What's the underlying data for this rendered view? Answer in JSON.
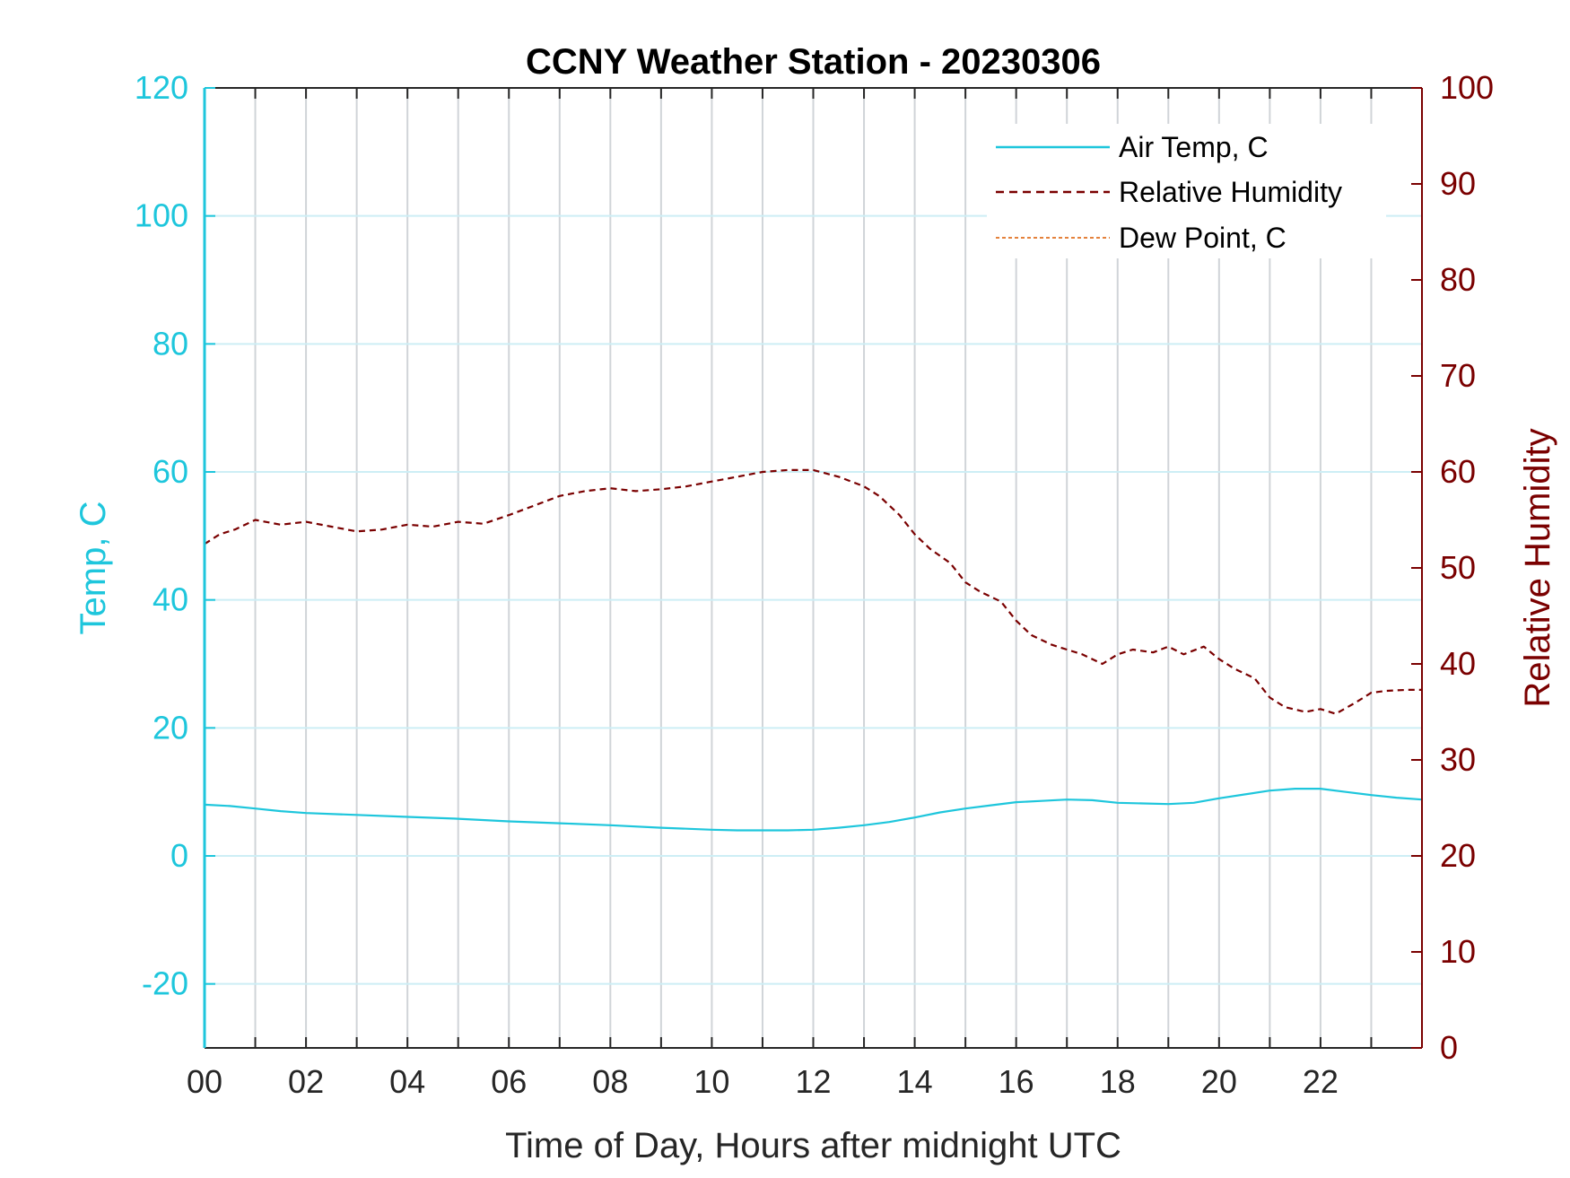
{
  "chart_data": {
    "type": "line",
    "title": "CCNY Weather Station - 20230306",
    "xlabel": "Time of Day, Hours after midnight UTC",
    "ylabel_left": "Temp, C",
    "ylabel_right": "Relative Humidity",
    "xlim": [
      0,
      24
    ],
    "ylim_left": [
      -30,
      120
    ],
    "ylim_right": [
      0,
      100
    ],
    "x_tick_labels": [
      "00",
      "02",
      "04",
      "06",
      "08",
      "10",
      "12",
      "14",
      "16",
      "18",
      "20",
      "22"
    ],
    "left_tick_labels": [
      "120",
      "100",
      "80",
      "60",
      "40",
      "20",
      "0",
      "-20"
    ],
    "right_tick_labels": [
      "100",
      "90",
      "80",
      "70",
      "60",
      "50",
      "40",
      "30",
      "20",
      "10",
      "0"
    ],
    "grid": true,
    "legend_location": "top-right",
    "colors": {
      "air_temp": "#1ec6dc",
      "humidity": "#7a0000",
      "dew_point": "#e07020",
      "right_axis": "#7a0000",
      "left_axis": "#1ec6dc",
      "grid_vertical": "#d0d4d8",
      "grid_horizontal": "#cdeef5"
    },
    "series": [
      {
        "name": "Air Temp, C",
        "axis": "left",
        "style": "solid",
        "x": [
          0,
          0.5,
          1,
          1.5,
          2,
          3,
          4,
          5,
          6,
          7,
          8,
          9,
          10,
          10.5,
          11,
          11.5,
          12,
          12.5,
          13,
          13.5,
          14,
          14.5,
          15,
          15.5,
          16,
          16.5,
          17,
          17.5,
          18,
          18.5,
          19,
          19.5,
          20,
          20.5,
          21,
          21.5,
          22,
          22.5,
          23,
          23.5,
          24
        ],
        "values": [
          8,
          7.8,
          7.4,
          7,
          6.7,
          6.4,
          6.1,
          5.8,
          5.4,
          5.1,
          4.8,
          4.4,
          4.1,
          4.0,
          4.0,
          4.0,
          4.1,
          4.4,
          4.8,
          5.3,
          6.0,
          6.8,
          7.4,
          7.9,
          8.4,
          8.6,
          8.8,
          8.7,
          8.3,
          8.2,
          8.1,
          8.3,
          9.0,
          9.6,
          10.2,
          10.5,
          10.5,
          10.0,
          9.5,
          9.1,
          8.8
        ]
      },
      {
        "name": "Relative Humidity",
        "axis": "right",
        "style": "dashed",
        "x": [
          0,
          0.3,
          0.6,
          1,
          1.5,
          2,
          2.5,
          3,
          3.5,
          4,
          4.5,
          5,
          5.5,
          6,
          6.5,
          7,
          7.5,
          8,
          8.5,
          9,
          9.5,
          10,
          10.5,
          11,
          11.5,
          12,
          12.5,
          13,
          13.3,
          13.7,
          14,
          14.3,
          14.7,
          15,
          15.3,
          15.7,
          16,
          16.3,
          16.7,
          17,
          17.3,
          17.7,
          18,
          18.3,
          18.7,
          19,
          19.3,
          19.7,
          20,
          20.3,
          20.7,
          21,
          21.3,
          21.7,
          22,
          22.3,
          22.7,
          23,
          23.3,
          23.7,
          24
        ],
        "values": [
          52.5,
          53.5,
          54.0,
          55.0,
          54.5,
          54.8,
          54.3,
          53.8,
          54.0,
          54.5,
          54.3,
          54.8,
          54.6,
          55.5,
          56.5,
          57.5,
          58.0,
          58.3,
          58.0,
          58.2,
          58.5,
          59.0,
          59.5,
          60.0,
          60.2,
          60.2,
          59.5,
          58.5,
          57.5,
          55.5,
          53.5,
          52.0,
          50.5,
          48.5,
          47.5,
          46.5,
          44.5,
          43.0,
          42.0,
          41.5,
          41.0,
          40.0,
          41.0,
          41.5,
          41.2,
          41.8,
          41.0,
          41.8,
          40.5,
          39.5,
          38.5,
          36.5,
          35.5,
          35.0,
          35.3,
          34.8,
          36.0,
          37.0,
          37.2,
          37.3,
          37.3
        ]
      },
      {
        "name": "Dew Point, C",
        "axis": "left",
        "style": "dash-dot",
        "x": [],
        "values": []
      }
    ]
  }
}
